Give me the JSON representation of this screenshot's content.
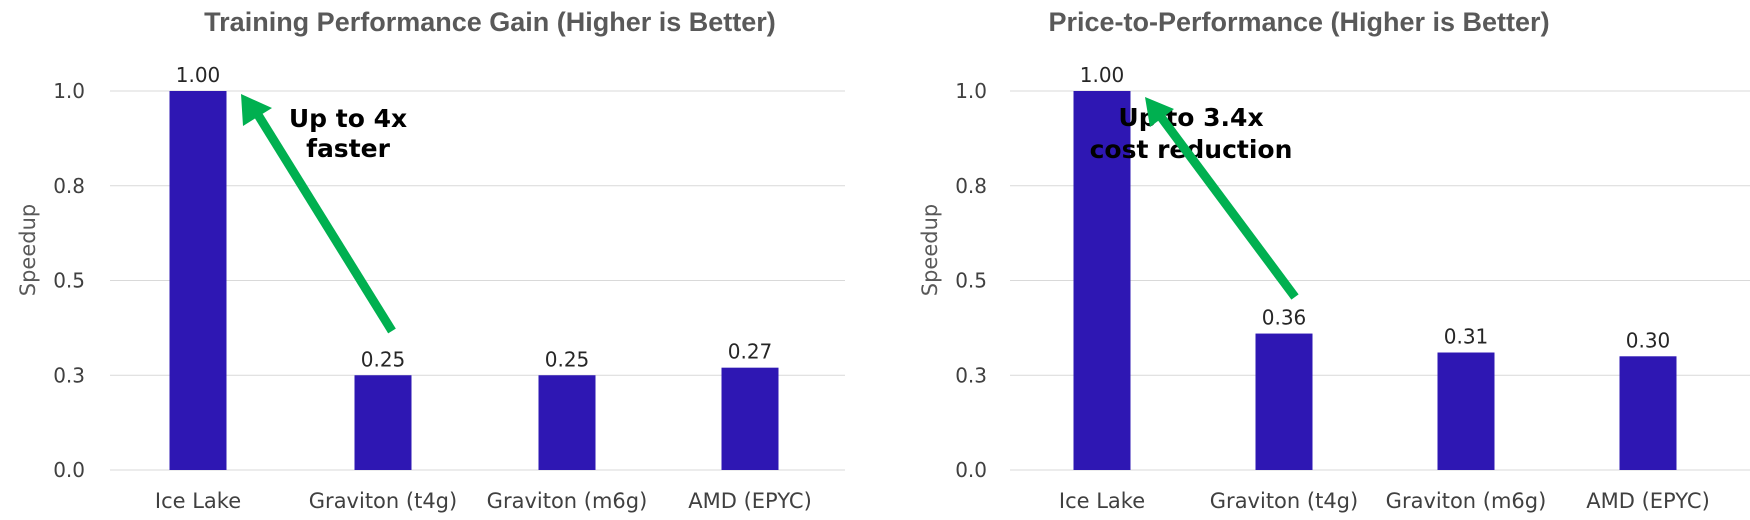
{
  "chart_data": [
    {
      "type": "bar",
      "title": "Training Performance Gain (Higher is Better)",
      "xlabel": "",
      "ylabel": "Speedup",
      "categories": [
        "Ice Lake",
        "Graviton (t4g)",
        "Graviton (m6g)",
        "AMD (EPYC)"
      ],
      "values": [
        1.0,
        0.25,
        0.25,
        0.27
      ],
      "value_labels": [
        "1.00",
        "0.25",
        "0.25",
        "0.27"
      ],
      "yticks": [
        "0.0",
        "0.3",
        "0.5",
        "0.8",
        "1.0"
      ],
      "ylim": [
        0,
        1.0
      ],
      "grid": true,
      "color": "#2e17b3",
      "annotation": {
        "lines": [
          "Up to 4x",
          "faster"
        ],
        "arrow_color": "#00b050"
      }
    },
    {
      "type": "bar",
      "title": "Price-to-Performance (Higher is Better)",
      "xlabel": "",
      "ylabel": "Speedup",
      "categories": [
        "Ice Lake",
        "Graviton (t4g)",
        "Graviton (m6g)",
        "AMD (EPYC)"
      ],
      "values": [
        1.0,
        0.36,
        0.31,
        0.3
      ],
      "value_labels": [
        "1.00",
        "0.36",
        "0.31",
        "0.30"
      ],
      "yticks": [
        "0.0",
        "0.3",
        "0.5",
        "0.8",
        "1.0"
      ],
      "ylim": [
        0,
        1.0
      ],
      "grid": true,
      "color": "#2e17b3",
      "annotation": {
        "lines": [
          "Up to 3.4x",
          "cost reduction"
        ],
        "arrow_color": "#00b050"
      }
    }
  ]
}
